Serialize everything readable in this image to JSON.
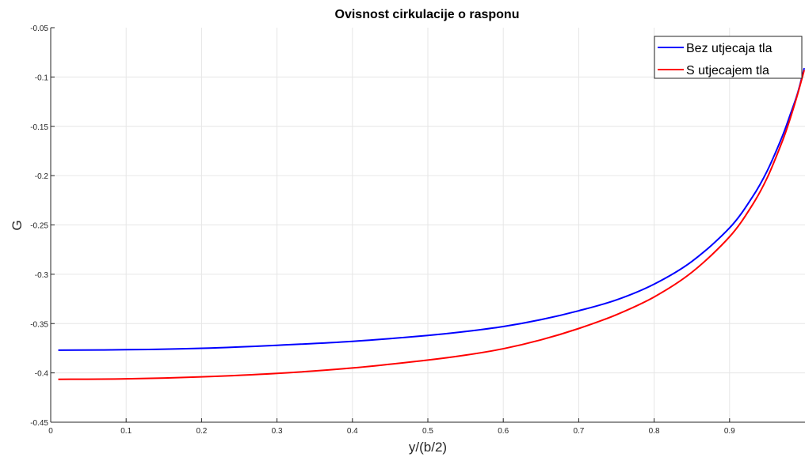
{
  "chart_data": {
    "type": "line",
    "title": "Ovisnost cirkulacije o rasponu",
    "xlabel": "y/(b/2)",
    "ylabel": "G",
    "xlim": [
      0,
      1
    ],
    "ylim": [
      -0.45,
      -0.05
    ],
    "grid": true,
    "legend_position": "top-right",
    "x_ticks": [
      "0",
      "0.1",
      "0.2",
      "0.3",
      "0.4",
      "0.5",
      "0.6",
      "0.7",
      "0.8",
      "0.9"
    ],
    "y_ticks": [
      "-0.05",
      "-0.1",
      "-0.15",
      "-0.2",
      "-0.25",
      "-0.3",
      "-0.35",
      "-0.4",
      "-0.45"
    ],
    "series": [
      {
        "name": "Bez utjecaja tla",
        "color": "#0000ff",
        "x": [
          0.01,
          0.1,
          0.2,
          0.3,
          0.4,
          0.5,
          0.55,
          0.6,
          0.65,
          0.7,
          0.75,
          0.8,
          0.85,
          0.9,
          0.93,
          0.95,
          0.97,
          0.98,
          0.99,
          0.999
        ],
        "y": [
          -0.377,
          -0.3765,
          -0.375,
          -0.372,
          -0.368,
          -0.362,
          -0.358,
          -0.353,
          -0.346,
          -0.337,
          -0.326,
          -0.31,
          -0.287,
          -0.253,
          -0.222,
          -0.195,
          -0.16,
          -0.139,
          -0.117,
          -0.091
        ]
      },
      {
        "name": "S utjecajem tla",
        "color": "#ff0000",
        "x": [
          0.01,
          0.1,
          0.2,
          0.3,
          0.4,
          0.5,
          0.55,
          0.6,
          0.65,
          0.7,
          0.75,
          0.8,
          0.85,
          0.9,
          0.93,
          0.95,
          0.97,
          0.98,
          0.99,
          0.999
        ],
        "y": [
          -0.4065,
          -0.406,
          -0.404,
          -0.4005,
          -0.395,
          -0.387,
          -0.382,
          -0.3755,
          -0.3665,
          -0.355,
          -0.341,
          -0.323,
          -0.298,
          -0.262,
          -0.23,
          -0.202,
          -0.165,
          -0.143,
          -0.118,
          -0.093
        ]
      }
    ]
  }
}
